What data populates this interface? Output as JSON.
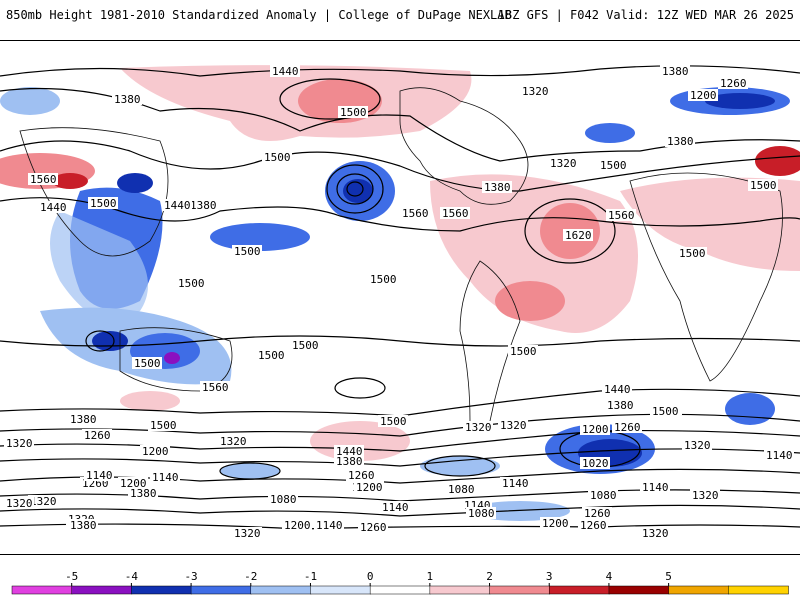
{
  "header": {
    "title_left": "850mb Height 1981-2010 Standardized Anomaly | College of DuPage NEXLAB",
    "title_right": "18Z GFS | F042 Valid: 12Z WED MAR 26 2025"
  },
  "legend": {
    "ticks": [
      "-5",
      "-4",
      "-3",
      "-2",
      "-1",
      "0",
      "1",
      "2",
      "3",
      "4",
      "5"
    ],
    "colors": [
      "#e040e0",
      "#8a10c0",
      "#1030b0",
      "#3f6de6",
      "#9fc0f2",
      "#d8e6fa",
      "#ffffff",
      "#f7c9cf",
      "#f08a90",
      "#c81e28",
      "#990000",
      "#f0a500",
      "#ffd200"
    ]
  },
  "contour_labels": [
    "1440",
    "1380",
    "1500",
    "1320",
    "1380",
    "1260",
    "1200",
    "1560",
    "1500",
    "1440",
    "1380",
    "1500",
    "1440",
    "1500",
    "1560",
    "1320",
    "1500",
    "1380",
    "1500",
    "1380",
    "1560",
    "1620",
    "1560",
    "1500",
    "1500",
    "1500",
    "1500",
    "1500",
    "1500",
    "1500",
    "1500",
    "1560",
    "1500",
    "1380",
    "1440",
    "1500",
    "1380",
    "1320",
    "1260",
    "1320",
    "1200",
    "1320",
    "1440",
    "1380",
    "1320",
    "1200",
    "1260",
    "1320",
    "1020",
    "1080",
    "1140",
    "1140",
    "1140",
    "1260",
    "1140",
    "1200",
    "1080",
    "1260",
    "1200",
    "1080",
    "1140",
    "1140",
    "1320",
    "1320",
    "1380",
    "1140",
    "1200",
    "1260",
    "1080",
    "1320",
    "1200",
    "1140",
    "1260",
    "1200",
    "1260",
    "1320",
    "1380",
    "1320",
    "1320",
    "1500"
  ]
}
